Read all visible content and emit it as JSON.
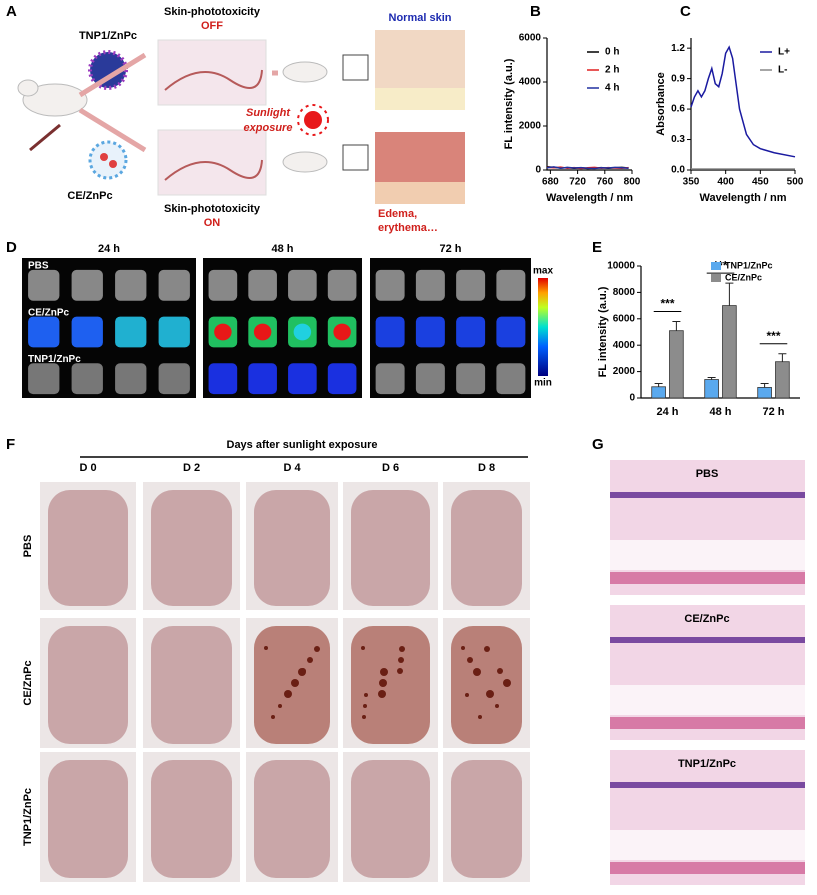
{
  "panel_letters": [
    "A",
    "B",
    "C",
    "D",
    "E",
    "F",
    "G"
  ],
  "panel_a": {
    "formulations": [
      "TNP1/ZnPc",
      "CE/ZnPc"
    ],
    "state_off": {
      "title": "Skin-phototoxicity",
      "state": "OFF"
    },
    "state_on": {
      "title": "Skin-phototoxicity",
      "state": "ON"
    },
    "sunlight": [
      "Sunlight",
      "exposure"
    ],
    "normal_skin": "Normal skin",
    "damaged_skin": [
      "Edema,",
      "erythema…"
    ]
  },
  "panel_d": {
    "times": [
      "24 h",
      "48 h",
      "72 h"
    ],
    "rows": [
      "PBS",
      "CE/ZnPc",
      "TNP1/ZnPc"
    ],
    "colorbar": {
      "max": "max",
      "min": "min"
    }
  },
  "panel_f": {
    "title": "Days after sunlight exposure",
    "days": [
      "D 0",
      "D 2",
      "D 4",
      "D 6",
      "D 8"
    ],
    "rows": [
      "PBS",
      "CE/ZnPc",
      "TNP1/ZnPc"
    ]
  },
  "panel_g": {
    "rows": [
      "PBS",
      "CE/ZnPc",
      "TNP1/ZnPc"
    ]
  },
  "chart_data": [
    {
      "type": "line",
      "x_label": "Wavelength / nm",
      "y_label": "FL intensity (a.u.)",
      "x": [
        675,
        685,
        695,
        705,
        715,
        725,
        735,
        745,
        755,
        765,
        775,
        785,
        795
      ],
      "series": [
        {
          "name": "0 h",
          "color": "#000000",
          "values": [
            150,
            120,
            90,
            110,
            80,
            100,
            70,
            90,
            110,
            80,
            100,
            120,
            90
          ]
        },
        {
          "name": "2 h",
          "color": "#e02020",
          "values": [
            120,
            100,
            130,
            80,
            110,
            70,
            100,
            120,
            80,
            110,
            90,
            80,
            110
          ]
        },
        {
          "name": "4 h",
          "color": "#2030a0",
          "values": [
            100,
            140,
            80,
            120,
            90,
            110,
            80,
            70,
            100,
            90,
            120,
            100,
            80
          ]
        }
      ],
      "xlim": [
        675,
        800
      ],
      "xticks": [
        680,
        720,
        760,
        800
      ],
      "ylim": [
        0,
        6000
      ],
      "yticks": [
        0,
        2000,
        4000,
        6000
      ],
      "legend": "upper right"
    },
    {
      "type": "line",
      "x_label": "Wavelength / nm",
      "y_label": "Absorbance",
      "x": [
        350,
        355,
        360,
        365,
        370,
        375,
        380,
        385,
        390,
        395,
        400,
        405,
        410,
        415,
        420,
        430,
        440,
        450,
        470,
        500
      ],
      "series": [
        {
          "name": "L+",
          "color": "#1a1aa0",
          "values": [
            0.62,
            0.72,
            0.78,
            0.72,
            0.78,
            0.9,
            1.0,
            0.85,
            0.82,
            0.95,
            1.15,
            1.21,
            1.1,
            0.85,
            0.6,
            0.35,
            0.25,
            0.21,
            0.17,
            0.13
          ]
        },
        {
          "name": "L-",
          "color": "#888888",
          "values": [
            0.01,
            0.01,
            0.01,
            0.01,
            0.01,
            0.01,
            0.01,
            0.01,
            0.01,
            0.01,
            0.01,
            0.01,
            0.01,
            0.01,
            0.01,
            0.01,
            0.01,
            0.01,
            0.01,
            0.01
          ]
        }
      ],
      "xlim": [
        350,
        500
      ],
      "xticks": [
        350,
        400,
        450,
        500
      ],
      "ylim": [
        0,
        1.3
      ],
      "yticks": [
        {
          "value": 0,
          "label": "0.0"
        },
        0.3,
        0.6,
        0.9,
        1.2
      ],
      "legend": "upper right"
    },
    {
      "type": "bar",
      "y_label": "FL intensity (a.u.)",
      "categories": [
        "24 h",
        "48 h",
        "72 h"
      ],
      "series": [
        {
          "name": "TNP1/ZnPc",
          "color": "#5aa9ee",
          "values": [
            850,
            1400,
            800
          ],
          "errors": [
            250,
            150,
            300
          ]
        },
        {
          "name": "CE/ZnPc",
          "color": "#8c8c8c",
          "values": [
            5100,
            7000,
            2750
          ],
          "errors": [
            700,
            1700,
            600
          ]
        }
      ],
      "annotations": [
        "***",
        "***",
        "***"
      ],
      "ylim": [
        0,
        10000
      ],
      "yticks": [
        0,
        2000,
        4000,
        6000,
        8000,
        10000
      ],
      "legend": "upper right"
    }
  ]
}
